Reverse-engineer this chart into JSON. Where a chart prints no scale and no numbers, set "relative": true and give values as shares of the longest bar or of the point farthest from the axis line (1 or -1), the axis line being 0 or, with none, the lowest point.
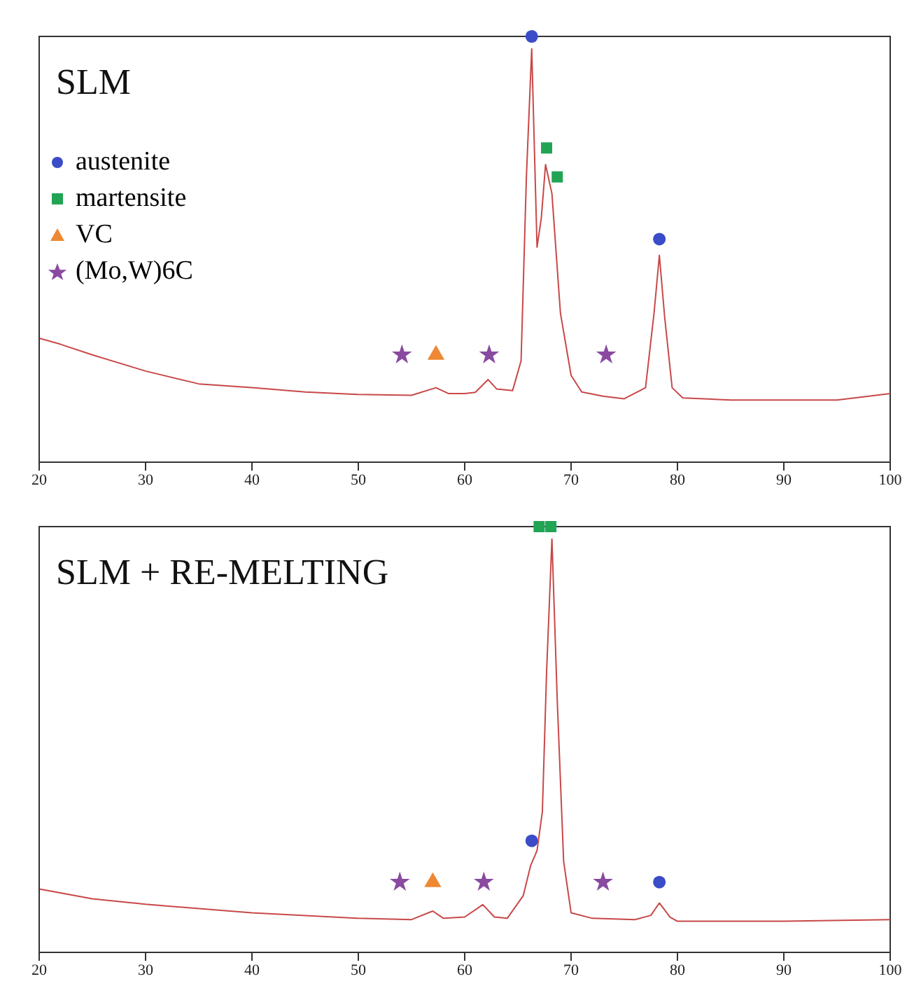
{
  "chart_data": [
    {
      "type": "line",
      "title": "SLM",
      "relative": true,
      "xlim": [
        20,
        100
      ],
      "xticks": [
        20,
        30,
        40,
        50,
        60,
        70,
        80,
        90,
        100
      ],
      "tick_labels": "x",
      "grid": false,
      "legend": "top left",
      "marker": "none",
      "line_style": "solid",
      "series": [
        {
          "color": "#c84848",
          "x": [
            20,
            22,
            25,
            30,
            35,
            40,
            45,
            50,
            55,
            57.3,
            58.5,
            60,
            61,
            62.2,
            63,
            64.5,
            65.3,
            65.8,
            66.3,
            66.8,
            67.2,
            67.6,
            68.2,
            69,
            70,
            71,
            73,
            75,
            77,
            77.8,
            78.3,
            78.8,
            79.5,
            80.5,
            85,
            90,
            95,
            98,
            100
          ],
          "values": [
            0.291,
            0.277,
            0.252,
            0.214,
            0.184,
            0.175,
            0.165,
            0.159,
            0.157,
            0.175,
            0.161,
            0.161,
            0.164,
            0.194,
            0.172,
            0.168,
            0.238,
            0.67,
            0.971,
            0.505,
            0.573,
            0.699,
            0.631,
            0.35,
            0.204,
            0.165,
            0.155,
            0.149,
            0.175,
            0.35,
            0.486,
            0.34,
            0.175,
            0.151,
            0.146,
            0.146,
            0.146,
            0.155,
            0.161
          ]
        },
        {
          "type": "scatter",
          "name": "austenite",
          "color": "#3a4cc8",
          "marker": "circle",
          "x": [
            66.3,
            78.3
          ],
          "values": [
            1,
            0.524
          ]
        },
        {
          "type": "scatter",
          "name": "martensite",
          "color": "#22a455",
          "marker": "square",
          "x": [
            67.7,
            68.7
          ],
          "values": [
            0.738,
            0.67
          ]
        },
        {
          "type": "scatter",
          "name": "VC",
          "color": "#ee8833",
          "marker": "triangle",
          "x": [
            57.3
          ],
          "values": [
            0.252
          ]
        },
        {
          "type": "scatter",
          "name": "(Mo,W)6C",
          "color": "#8a4aa0",
          "marker": "star",
          "x": [
            54.1,
            62.3,
            73.3
          ],
          "values": [
            0.252,
            0.252,
            0.252
          ]
        }
      ]
    },
    {
      "type": "line",
      "title": "SLM + RE-MELTING",
      "relative": true,
      "xlim": [
        20,
        100
      ],
      "xticks": [
        20,
        30,
        40,
        50,
        60,
        70,
        80,
        90,
        100
      ],
      "tick_labels": "x",
      "grid": false,
      "marker": "none",
      "line_style": "solid",
      "series": [
        {
          "color": "#c84848",
          "x": [
            20,
            25,
            30,
            40,
            50,
            55,
            57,
            58,
            60,
            61.7,
            62.8,
            64,
            65.5,
            66.2,
            66.8,
            67.3,
            67.7,
            68.2,
            68.7,
            69.3,
            70,
            72,
            76,
            77.5,
            78.3,
            79.3,
            80,
            90,
            100
          ],
          "values": [
            0.149,
            0.126,
            0.113,
            0.093,
            0.08,
            0.077,
            0.097,
            0.08,
            0.083,
            0.112,
            0.083,
            0.08,
            0.133,
            0.204,
            0.239,
            0.33,
            0.66,
            0.971,
            0.592,
            0.214,
            0.093,
            0.08,
            0.077,
            0.087,
            0.116,
            0.083,
            0.073,
            0.073,
            0.077
          ]
        },
        {
          "type": "scatter",
          "color": "#3a4cc8",
          "marker": "circle",
          "x": [
            66.3,
            78.3
          ],
          "values": [
            0.262,
            0.165
          ]
        },
        {
          "type": "scatter",
          "color": "#22a455",
          "marker": "square",
          "x": [
            67.0,
            68.1
          ],
          "values": [
            1,
            1
          ]
        },
        {
          "type": "scatter",
          "color": "#ee8833",
          "marker": "triangle",
          "x": [
            57.0
          ],
          "values": [
            0.165
          ]
        },
        {
          "type": "scatter",
          "color": "#8a4aa0",
          "marker": "star",
          "x": [
            53.9,
            61.8,
            73.0
          ],
          "values": [
            0.165,
            0.165,
            0.165
          ]
        }
      ]
    }
  ]
}
